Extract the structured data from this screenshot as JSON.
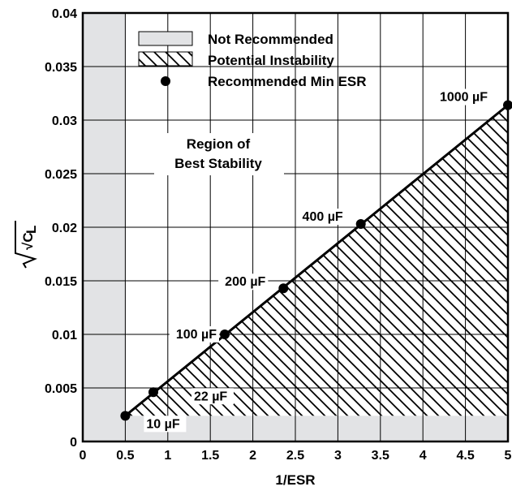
{
  "chart_data": {
    "type": "scatter",
    "xlabel": "1/ESR",
    "ylabel": "√C_L",
    "ylabel_main": "√C",
    "ylabel_sub": "L",
    "xlim": [
      0,
      5
    ],
    "ylim": [
      0,
      0.04
    ],
    "x_ticks": [
      0,
      0.5,
      1,
      1.5,
      2,
      2.5,
      3,
      3.5,
      4,
      4.5,
      5
    ],
    "x_tick_labels": [
      "0",
      "0.5",
      "1",
      "1.5",
      "2",
      "2.5",
      "3",
      "3.5",
      "4",
      "4.5",
      "5"
    ],
    "y_ticks": [
      0,
      0.005,
      0.01,
      0.015,
      0.02,
      0.025,
      0.03,
      0.035,
      0.04
    ],
    "y_tick_labels": [
      "0",
      "0.005",
      "0.01",
      "0.015",
      "0.02",
      "0.025",
      "0.03",
      "0.035",
      "0.04"
    ],
    "grid": true,
    "legend": [
      {
        "label": "Not Recommended",
        "style": "gray-fill"
      },
      {
        "label": "Potential Instability",
        "style": "hatched"
      },
      {
        "label": "Recommended Min ESR",
        "style": "dot"
      }
    ],
    "legend_placement": "top-left",
    "region_label": [
      "Region of",
      "Best Stability"
    ],
    "points": [
      {
        "x": 0.5,
        "y": 0.0024,
        "label": "10 µF"
      },
      {
        "x": 0.83,
        "y": 0.0046,
        "label": "22 µF"
      },
      {
        "x": 1.67,
        "y": 0.01,
        "label": "100 µF"
      },
      {
        "x": 2.36,
        "y": 0.0143,
        "label": "200 µF"
      },
      {
        "x": 3.27,
        "y": 0.0203,
        "label": "400 µF"
      },
      {
        "x": 5.0,
        "y": 0.0314,
        "label": "1000 µF"
      }
    ],
    "not_recommended_regions": [
      {
        "x": [
          0,
          0.5
        ],
        "y": [
          0,
          0.04
        ]
      },
      {
        "x": [
          0,
          5
        ],
        "y": [
          0,
          0.0024
        ]
      }
    ],
    "colors": {
      "not_recommended": "#e2e3e5",
      "line": "#000000",
      "grid": "#000000"
    }
  }
}
